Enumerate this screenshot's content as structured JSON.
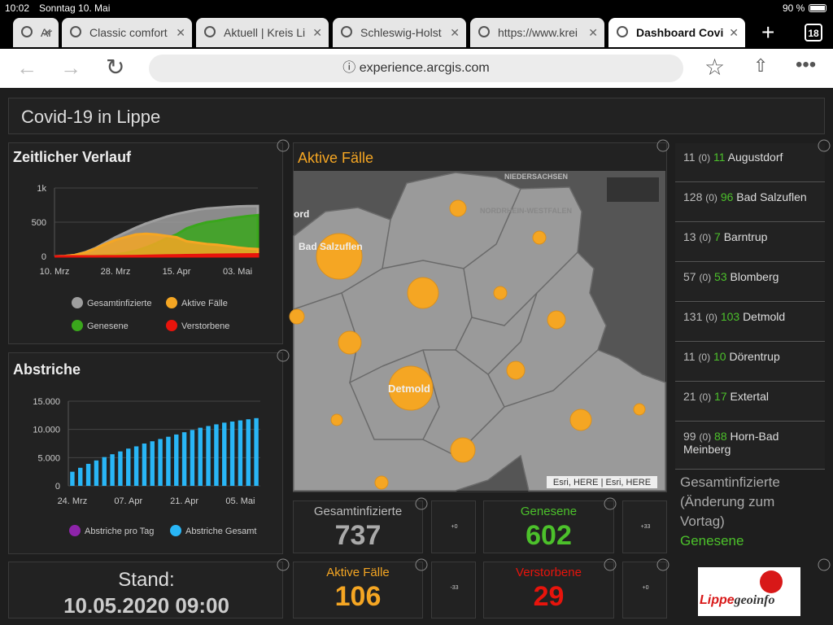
{
  "status_bar": {
    "time": "10:02",
    "date": "Sonntag 10. Mai",
    "battery": "90 %"
  },
  "tabs": [
    "Ar",
    "Classic comfort",
    "Aktuell | Kreis Li",
    "Schleswig-Holst",
    "https://www.krei",
    "Dashboard Covi"
  ],
  "tab_count": "18",
  "address": "experience.arcgis.com",
  "dashboard": {
    "title": "Covid-19 in Lippe",
    "timeline": {
      "type": "area",
      "title": "Zeitlicher Verlauf",
      "categories": [
        "10. Mrz",
        null,
        null,
        null,
        null,
        null,
        "28. Mrz",
        null,
        null,
        null,
        null,
        null,
        "15. Apr",
        null,
        null,
        null,
        null,
        null,
        "03. Mai",
        null,
        null
      ],
      "series": [
        {
          "name": "Gesamtinfizierte",
          "color": "#9e9e9e",
          "values": [
            0,
            5,
            20,
            60,
            120,
            200,
            280,
            350,
            420,
            480,
            530,
            580,
            620,
            650,
            680,
            700,
            710,
            720,
            730,
            735,
            737
          ]
        },
        {
          "name": "Genesene",
          "color": "#3aa61c",
          "values": [
            0,
            0,
            0,
            3,
            8,
            15,
            25,
            50,
            80,
            130,
            190,
            260,
            320,
            410,
            460,
            500,
            520,
            550,
            570,
            590,
            602
          ]
        },
        {
          "name": "Aktive Fälle",
          "color": "#f5a623",
          "values": [
            0,
            5,
            20,
            55,
            110,
            180,
            240,
            280,
            320,
            330,
            320,
            300,
            280,
            220,
            200,
            180,
            170,
            150,
            130,
            115,
            106
          ]
        },
        {
          "name": "Verstorbene",
          "color": "#e8140c",
          "values": [
            0,
            0,
            0,
            0,
            0,
            1,
            2,
            3,
            5,
            8,
            10,
            13,
            15,
            18,
            20,
            22,
            24,
            25,
            27,
            28,
            29
          ]
        }
      ],
      "ylim": [
        0,
        1000
      ],
      "yticks": [
        0,
        500,
        {
          "value": 1000,
          "label": "1k"
        }
      ]
    },
    "swabs": {
      "type": "bar",
      "title": "Abstriche",
      "categories": [
        "24. Mrz",
        null,
        null,
        null,
        null,
        null,
        null,
        "07. Apr",
        null,
        null,
        null,
        null,
        null,
        null,
        "21. Apr",
        null,
        null,
        null,
        null,
        null,
        null,
        "05. Mai",
        null,
        null
      ],
      "series": [
        {
          "name": "Abstriche pro Tag",
          "color": "#8e24aa"
        },
        {
          "name": "Abstriche Gesamt",
          "color": "#29b6f6",
          "values": [
            2500,
            3200,
            3900,
            4500,
            5100,
            5600,
            6100,
            6600,
            7000,
            7500,
            7900,
            8300,
            8700,
            9100,
            9500,
            9900,
            10300,
            10600,
            10900,
            11200,
            11400,
            11600,
            11800,
            12000
          ]
        }
      ],
      "ylim": [
        0,
        15000
      ],
      "yticks": [
        0,
        {
          "value": 5000,
          "label": "5.000"
        },
        {
          "value": 10000,
          "label": "10.000"
        },
        {
          "value": 15000,
          "label": "15.000"
        }
      ]
    },
    "map": {
      "title": "Aktive Fälle",
      "labels": [
        "Bad Salzuflen",
        "Detmold",
        "NIEDERSACHSEN",
        "NORDRHEIN-WESTFALEN",
        "ord"
      ],
      "attribution": "Esri, HERE | Esri, HERE"
    },
    "list": [
      {
        "total": "11",
        "change": "(0)",
        "recovered": "11",
        "name": "Augustdorf"
      },
      {
        "total": "128",
        "change": "(0)",
        "recovered": "96",
        "name": "Bad Salzuflen"
      },
      {
        "total": "13",
        "change": "(0)",
        "recovered": "7",
        "name": "Barntrup"
      },
      {
        "total": "57",
        "change": "(0)",
        "recovered": "53",
        "name": "Blomberg"
      },
      {
        "total": "131",
        "change": "(0)",
        "recovered": "103",
        "name": "Detmold"
      },
      {
        "total": "11",
        "change": "(0)",
        "recovered": "10",
        "name": "Dörentrup"
      },
      {
        "total": "21",
        "change": "(0)",
        "recovered": "17",
        "name": "Extertal"
      },
      {
        "total": "99",
        "change": "(0)",
        "recovered": "88",
        "name": "Horn-Bad Meinberg"
      }
    ],
    "legend_note": {
      "text": "Gesamtinfizierte (Änderung zum Vortag)",
      "green": "Genesene"
    },
    "indicators": [
      {
        "title": "Gesamtinfizierte",
        "value": 737,
        "delta": "+0"
      },
      {
        "title": "Genesene",
        "value": 602,
        "delta": "+33"
      },
      {
        "title": "Aktive Fälle",
        "value": 106,
        "delta": "-33"
      },
      {
        "title": "Verstorbene",
        "value": 29,
        "delta": "+0"
      }
    ],
    "stand": {
      "label": "Stand:",
      "value": "10.05.2020 09:00"
    },
    "logo": {
      "red": "Lippe",
      "dark": "geoinfo"
    }
  }
}
